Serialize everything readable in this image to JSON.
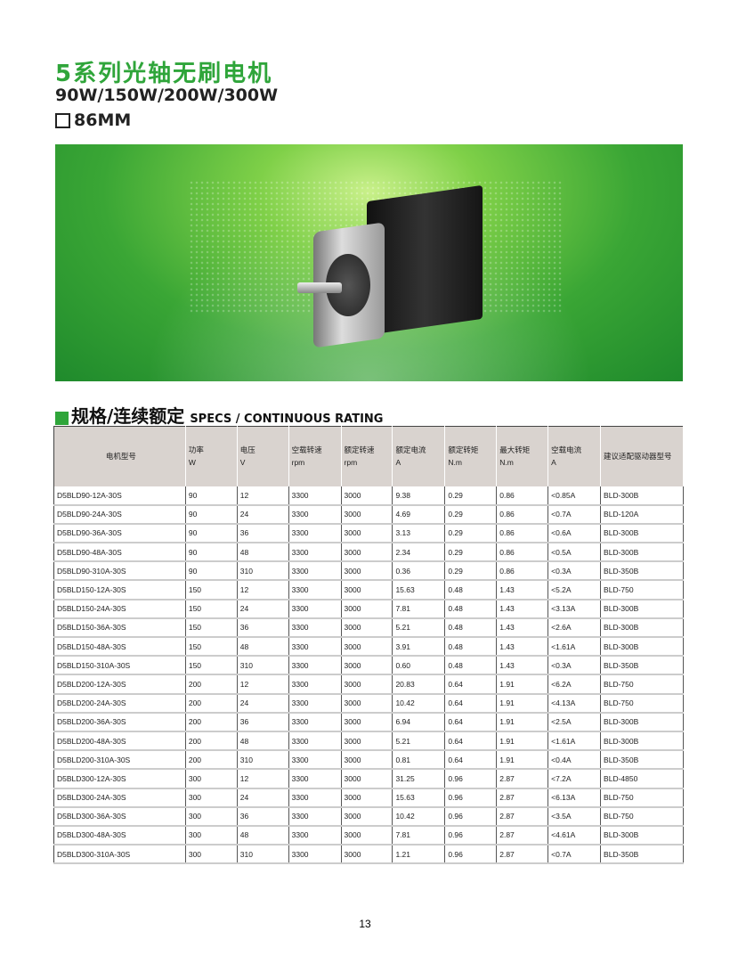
{
  "title": "5系列光轴无刷电机",
  "power_range": "90W/150W/200W/300W",
  "size": "86MM",
  "section": {
    "cn": "规格/连续额定",
    "en": "SPECS / CONTINUOUS RATING"
  },
  "table": {
    "headers": [
      [
        "电机型号",
        ""
      ],
      [
        "功率",
        "W"
      ],
      [
        "电压",
        "V"
      ],
      [
        "空载转速",
        "rpm"
      ],
      [
        "额定转速",
        "rpm"
      ],
      [
        "额定电流",
        "A"
      ],
      [
        "额定转矩",
        "N.m"
      ],
      [
        "最大转矩",
        "N.m"
      ],
      [
        "空载电流",
        "A"
      ],
      [
        "建议适配驱动器型号",
        ""
      ]
    ],
    "rows": [
      [
        "D5BLD90-12A-30S",
        "90",
        "12",
        "3300",
        "3000",
        "9.38",
        "0.29",
        "0.86",
        "<0.85A",
        "BLD-300B"
      ],
      [
        "D5BLD90-24A-30S",
        "90",
        "24",
        "3300",
        "3000",
        "4.69",
        "0.29",
        "0.86",
        "<0.7A",
        "BLD-120A"
      ],
      [
        "D5BLD90-36A-30S",
        "90",
        "36",
        "3300",
        "3000",
        "3.13",
        "0.29",
        "0.86",
        "<0.6A",
        "BLD-300B"
      ],
      [
        "D5BLD90-48A-30S",
        "90",
        "48",
        "3300",
        "3000",
        "2.34",
        "0.29",
        "0.86",
        "<0.5A",
        "BLD-300B"
      ],
      [
        "D5BLD90-310A-30S",
        "90",
        "310",
        "3300",
        "3000",
        "0.36",
        "0.29",
        "0.86",
        "<0.3A",
        "BLD-350B"
      ],
      [
        "D5BLD150-12A-30S",
        "150",
        "12",
        "3300",
        "3000",
        "15.63",
        "0.48",
        "1.43",
        "<5.2A",
        "BLD-750"
      ],
      [
        "D5BLD150-24A-30S",
        "150",
        "24",
        "3300",
        "3000",
        "7.81",
        "0.48",
        "1.43",
        "<3.13A",
        "BLD-300B"
      ],
      [
        "D5BLD150-36A-30S",
        "150",
        "36",
        "3300",
        "3000",
        "5.21",
        "0.48",
        "1.43",
        "<2.6A",
        "BLD-300B"
      ],
      [
        "D5BLD150-48A-30S",
        "150",
        "48",
        "3300",
        "3000",
        "3.91",
        "0.48",
        "1.43",
        "<1.61A",
        "BLD-300B"
      ],
      [
        "D5BLD150-310A-30S",
        "150",
        "310",
        "3300",
        "3000",
        "0.60",
        "0.48",
        "1.43",
        "<0.3A",
        "BLD-350B"
      ],
      [
        "D5BLD200-12A-30S",
        "200",
        "12",
        "3300",
        "3000",
        "20.83",
        "0.64",
        "1.91",
        "<6.2A",
        "BLD-750"
      ],
      [
        "D5BLD200-24A-30S",
        "200",
        "24",
        "3300",
        "3000",
        "10.42",
        "0.64",
        "1.91",
        "<4.13A",
        "BLD-750"
      ],
      [
        "D5BLD200-36A-30S",
        "200",
        "36",
        "3300",
        "3000",
        "6.94",
        "0.64",
        "1.91",
        "<2.5A",
        "BLD-300B"
      ],
      [
        "D5BLD200-48A-30S",
        "200",
        "48",
        "3300",
        "3000",
        "5.21",
        "0.64",
        "1.91",
        "<1.61A",
        "BLD-300B"
      ],
      [
        "D5BLD200-310A-30S",
        "200",
        "310",
        "3300",
        "3000",
        "0.81",
        "0.64",
        "1.91",
        "<0.4A",
        "BLD-350B"
      ],
      [
        "D5BLD300-12A-30S",
        "300",
        "12",
        "3300",
        "3000",
        "31.25",
        "0.96",
        "2.87",
        "<7.2A",
        "BLD-4850"
      ],
      [
        "D5BLD300-24A-30S",
        "300",
        "24",
        "3300",
        "3000",
        "15.63",
        "0.96",
        "2.87",
        "<6.13A",
        "BLD-750"
      ],
      [
        "D5BLD300-36A-30S",
        "300",
        "36",
        "3300",
        "3000",
        "10.42",
        "0.96",
        "2.87",
        "<3.5A",
        "BLD-750"
      ],
      [
        "D5BLD300-48A-30S",
        "300",
        "48",
        "3300",
        "3000",
        "7.81",
        "0.96",
        "2.87",
        "<4.61A",
        "BLD-300B"
      ],
      [
        "D5BLD300-310A-30S",
        "300",
        "310",
        "3300",
        "3000",
        "1.21",
        "0.96",
        "2.87",
        "<0.7A",
        "BLD-350B"
      ]
    ]
  },
  "page_number": "13",
  "colors": {
    "brand_green": "#2fa53a",
    "header_bg": "#d9d3cf"
  }
}
